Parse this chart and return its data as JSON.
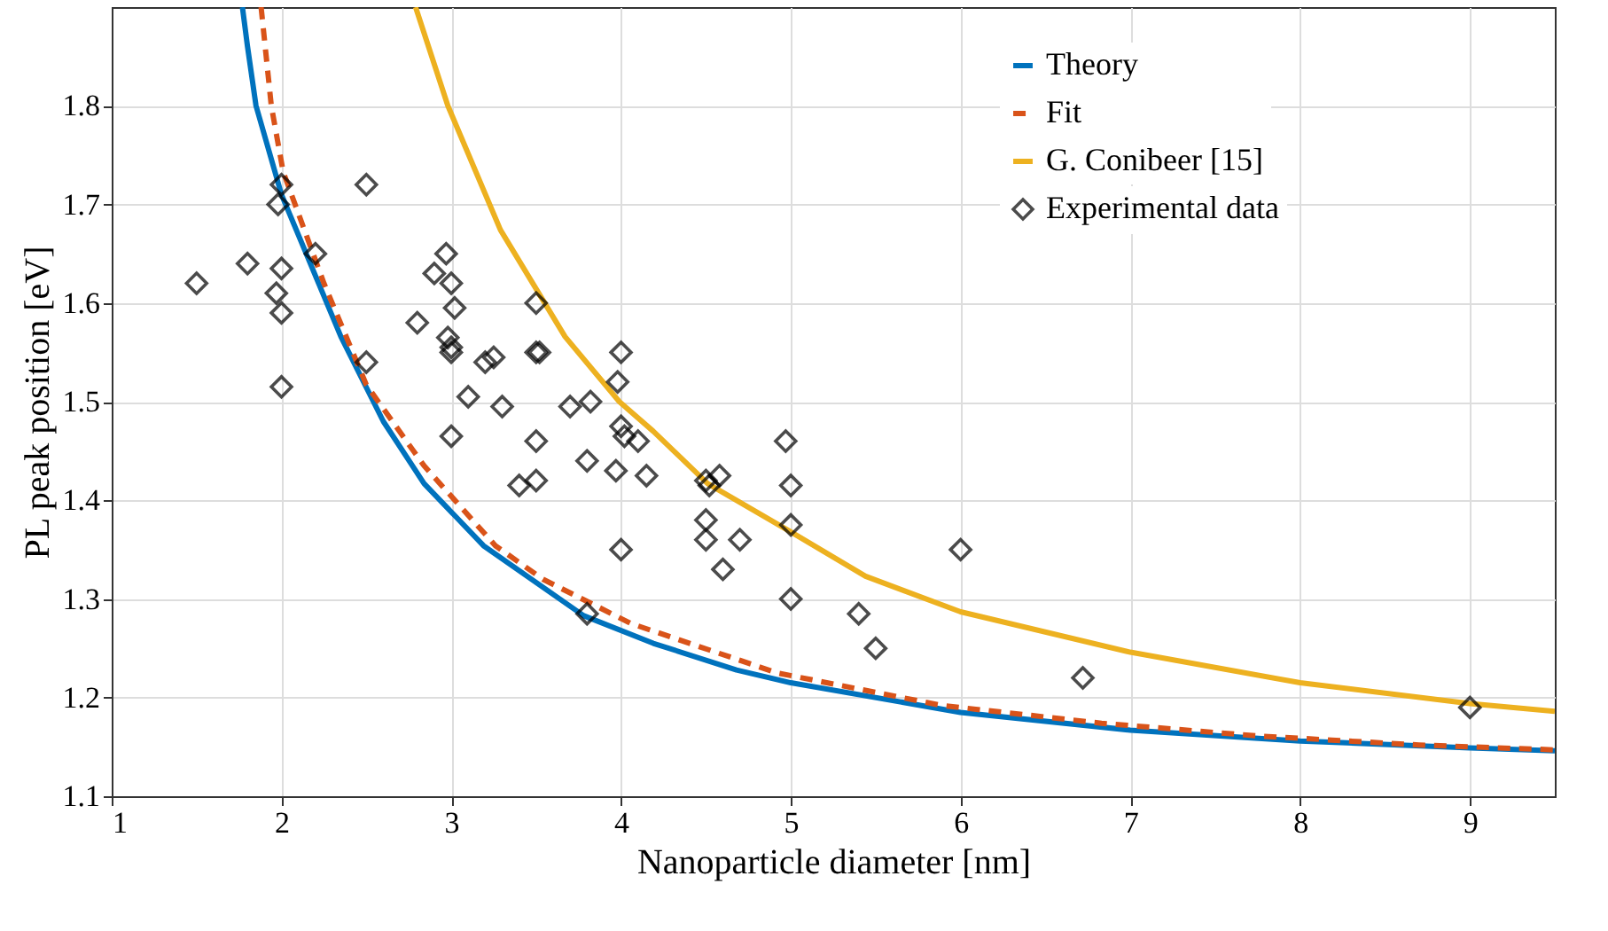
{
  "chart_data": {
    "type": "line",
    "xlabel": "Nanoparticle diameter [nm]",
    "ylabel": "PL peak position [eV]",
    "xlim": [
      1,
      9.5
    ],
    "xticks": [
      1,
      2,
      3,
      4,
      5,
      6,
      7,
      8,
      9
    ],
    "ylim": [
      1.1,
      1.9
    ],
    "yticks": [
      1.1,
      1.2,
      1.3,
      1.4,
      1.5,
      1.6,
      1.7,
      1.8
    ],
    "grid": true,
    "legend": "top right",
    "series": [
      {
        "name": "Theory",
        "color": "#0072bd",
        "line_style": "solid",
        "x": [
          1.77,
          1.8,
          1.85,
          2.0,
          2.35,
          2.6,
          2.84,
          3.19,
          3.78,
          4.19,
          4.68,
          5.0,
          6.0,
          7.0,
          8.0,
          9.0,
          9.5
        ],
        "values": [
          1.9,
          1.86,
          1.8,
          1.71,
          1.566,
          1.48,
          1.417,
          1.354,
          1.283,
          1.255,
          1.228,
          1.215,
          1.185,
          1.167,
          1.156,
          1.149,
          1.146
        ]
      },
      {
        "name": "Fit",
        "color": "#d95319",
        "line_style": "dashed",
        "x": [
          1.88,
          1.94,
          2.01,
          2.25,
          2.5,
          2.84,
          3.26,
          3.54,
          4.06,
          4.92,
          5.89,
          6.83,
          7.76,
          8.7,
          9.5
        ],
        "values": [
          1.9,
          1.8,
          1.733,
          1.62,
          1.517,
          1.435,
          1.354,
          1.32,
          1.275,
          1.225,
          1.192,
          1.174,
          1.161,
          1.152,
          1.147
        ]
      },
      {
        "name": "G. Conibeer [15]",
        "color": "#edb120",
        "line_style": "solid",
        "x": [
          2.79,
          2.98,
          3.29,
          3.67,
          3.99,
          4.19,
          4.51,
          5.0,
          5.44,
          6.0,
          7.0,
          8.0,
          9.0,
          9.5
        ],
        "values": [
          1.9,
          1.8,
          1.674,
          1.566,
          1.5,
          1.47,
          1.417,
          1.368,
          1.323,
          1.287,
          1.246,
          1.215,
          1.194,
          1.186
        ]
      },
      {
        "name": "Experimental data",
        "type": "scatter",
        "color": "#000000",
        "marker": "diamond",
        "x": [
          1.5,
          1.8,
          1.97,
          1.98,
          2.0,
          2.0,
          2.0,
          2.0,
          2.2,
          2.5,
          2.5,
          2.8,
          2.9,
          2.97,
          3.0,
          2.98,
          3.0,
          3.0,
          3.02,
          3.0,
          3.1,
          3.2,
          3.25,
          3.3,
          3.4,
          3.5,
          3.5,
          3.52,
          3.5,
          3.5,
          3.7,
          3.8,
          3.82,
          3.8,
          3.97,
          4.0,
          3.98,
          4.0,
          4.02,
          4.1,
          4.15,
          4.0,
          4.5,
          4.52,
          4.58,
          4.5,
          4.5,
          4.6,
          4.7,
          4.97,
          5.0,
          5.0,
          5.0,
          5.4,
          5.5,
          6.0,
          6.72,
          9.0
        ],
        "values": [
          1.62,
          1.64,
          1.61,
          1.7,
          1.72,
          1.635,
          1.59,
          1.515,
          1.65,
          1.72,
          1.54,
          1.58,
          1.63,
          1.65,
          1.62,
          1.565,
          1.555,
          1.55,
          1.595,
          1.465,
          1.505,
          1.54,
          1.545,
          1.495,
          1.415,
          1.6,
          1.55,
          1.55,
          1.46,
          1.42,
          1.495,
          1.44,
          1.5,
          1.285,
          1.43,
          1.55,
          1.52,
          1.475,
          1.465,
          1.46,
          1.425,
          1.35,
          1.42,
          1.415,
          1.425,
          1.38,
          1.36,
          1.33,
          1.36,
          1.46,
          1.415,
          1.375,
          1.3,
          1.285,
          1.25,
          1.35,
          1.22,
          1.19
        ]
      }
    ]
  }
}
